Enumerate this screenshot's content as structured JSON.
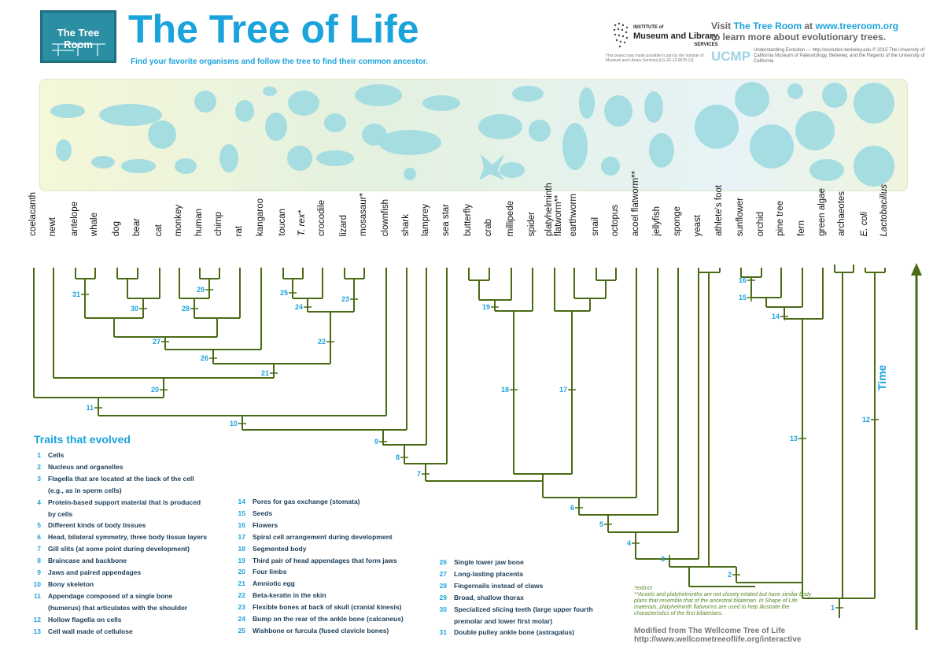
{
  "header": {
    "logo_text": "The Tree Room",
    "title": "The Tree of Life",
    "subtitle": "Find your favorite organisms and follow the tree to find their common ancestor.",
    "imls_line1": "INSTITUTE of",
    "imls_line2": "Museum and Library",
    "imls_line3": "SERVICES",
    "imls_note": "This project was made possible in part by the Institute of Museum and Library Services [LG-26-12-0578-12]",
    "visit_prefix": "Visit ",
    "visit_name": "The Tree Room",
    "visit_mid": " at ",
    "visit_url": "www.treeroom.org",
    "visit_line2": "to learn more about evolutionary trees.",
    "ucmp": "UCMP",
    "ucmp_text": "Understanding Evolution — http://evolution.berkeley.edu © 2015 The University of California Museum of Paleontology, Berkeley, and the Regents of the University of California"
  },
  "leaves": [
    {
      "name": "coelacanth",
      "italic": false
    },
    {
      "name": "newt",
      "italic": false
    },
    {
      "name": "antelope",
      "italic": false
    },
    {
      "name": "whale",
      "italic": false
    },
    {
      "name": "dog",
      "italic": false
    },
    {
      "name": "bear",
      "italic": false
    },
    {
      "name": "cat",
      "italic": false
    },
    {
      "name": "monkey",
      "italic": false
    },
    {
      "name": "human",
      "italic": false
    },
    {
      "name": "chimp",
      "italic": false
    },
    {
      "name": "rat",
      "italic": false
    },
    {
      "name": "kangaroo",
      "italic": false
    },
    {
      "name": "toucan",
      "italic": false
    },
    {
      "name": "T. rex*",
      "italic": true
    },
    {
      "name": "crocodile",
      "italic": false
    },
    {
      "name": "lizard",
      "italic": false
    },
    {
      "name": "mosasaur*",
      "italic": false
    },
    {
      "name": "clownfish",
      "italic": false
    },
    {
      "name": "shark",
      "italic": false
    },
    {
      "name": "lamprey",
      "italic": false
    },
    {
      "name": "sea star",
      "italic": false
    },
    {
      "name": "butterfly",
      "italic": false
    },
    {
      "name": "crab",
      "italic": false
    },
    {
      "name": "millipede",
      "italic": false
    },
    {
      "name": "spider",
      "italic": false
    },
    {
      "name": "platyhelminth flatworm**",
      "italic": false
    },
    {
      "name": "earthworm",
      "italic": false
    },
    {
      "name": "snail",
      "italic": false
    },
    {
      "name": "octopus",
      "italic": false
    },
    {
      "name": "acoel flatworm**",
      "italic": false
    },
    {
      "name": "jellyfish",
      "italic": false
    },
    {
      "name": "sponge",
      "italic": false
    },
    {
      "name": "yeast",
      "italic": false
    },
    {
      "name": "athlete's foot",
      "italic": false
    },
    {
      "name": "sunflower",
      "italic": false
    },
    {
      "name": "orchid",
      "italic": false
    },
    {
      "name": "pine tree",
      "italic": false
    },
    {
      "name": "fern",
      "italic": false
    },
    {
      "name": "green algae",
      "italic": false
    },
    {
      "name": "archaeotes",
      "italic": false
    },
    {
      "name": "E. coli",
      "italic": true
    },
    {
      "name": "Lactobacillus",
      "italic": true
    }
  ],
  "node_labels": [
    "1",
    "2",
    "3",
    "4",
    "5",
    "6",
    "7",
    "8",
    "9",
    "10",
    "11",
    "12",
    "13",
    "14",
    "15",
    "16",
    "17",
    "18",
    "19",
    "20",
    "21",
    "22",
    "23",
    "24",
    "25",
    "26",
    "27",
    "28",
    "29",
    "30",
    "31"
  ],
  "traits_title": "Traits that evolved",
  "traits": [
    {
      "n": "1",
      "t": "Cells"
    },
    {
      "n": "2",
      "t": "Nucleus and organelles"
    },
    {
      "n": "3",
      "t": "Flagella that are located at the back of the cell"
    },
    {
      "n": "",
      "t": "(e.g., as in sperm cells)"
    },
    {
      "n": "4",
      "t": "Protein-based support material that is produced"
    },
    {
      "n": "",
      "t": "by cells"
    },
    {
      "n": "5",
      "t": "Different kinds of body tissues"
    },
    {
      "n": "6",
      "t": "Head, bilateral symmetry, three body tissue layers"
    },
    {
      "n": "7",
      "t": "Gill slits (at some point during development)"
    },
    {
      "n": "8",
      "t": "Braincase and backbone"
    },
    {
      "n": "9",
      "t": "Jaws and paired appendages"
    },
    {
      "n": "10",
      "t": "Bony skeleton"
    },
    {
      "n": "11",
      "t": "Appendage composed of a single bone"
    },
    {
      "n": "",
      "t": "(humerus) that articulates with the shoulder"
    },
    {
      "n": "12",
      "t": "Hollow flagella on cells"
    },
    {
      "n": "13",
      "t": "Cell wall made of cellulose"
    },
    {
      "n": "14",
      "t": "Pores for gas exchange (stomata)"
    },
    {
      "n": "15",
      "t": "Seeds"
    },
    {
      "n": "16",
      "t": "Flowers"
    },
    {
      "n": "17",
      "t": "Spiral cell arrangement during development"
    },
    {
      "n": "18",
      "t": "Segmented body"
    },
    {
      "n": "19",
      "t": "Third pair of head appendages that form jaws"
    },
    {
      "n": "20",
      "t": "Four limbs"
    },
    {
      "n": "21",
      "t": "Amniotic egg"
    },
    {
      "n": "22",
      "t": "Beta-keratin in the skin"
    },
    {
      "n": "23",
      "t": "Flexible bones at back of skull (cranial kinesis)"
    },
    {
      "n": "24",
      "t": "Bump on the rear of the ankle bone (calcaneus)"
    },
    {
      "n": "25",
      "t": "Wishbone or furcula (fused clavicle bones)"
    },
    {
      "n": "26",
      "t": "Single lower jaw bone"
    },
    {
      "n": "27",
      "t": "Long-lasting placenta"
    },
    {
      "n": "28",
      "t": "Fingernails instead of claws"
    },
    {
      "n": "29",
      "t": "Broad, shallow thorax"
    },
    {
      "n": "30",
      "t": "Specialized slicing teeth (large upper fourth"
    },
    {
      "n": "",
      "t": "premolar and lower first molar)"
    },
    {
      "n": "31",
      "t": "Double pulley ankle bone (astragalus)"
    }
  ],
  "time_label": "Time",
  "notes": {
    "extinct": "*extinct",
    "acoel": "**Acoels and platyhelminths are not closely related but have similar body plans that resemble that of the ancestral bilaterian. In Shape of Life materials, platyhelminth flatworms are used to help illustrate the characteristics of the first bilaterians."
  },
  "credit": {
    "line1": "Modified from The Wellcome Tree of Life",
    "line2": "http://www.wellcometreeoflife.org/interactive"
  },
  "colors": {
    "accent": "#1ba3dc",
    "branch": "#4a6b16",
    "trait_text": "#1a3c56"
  }
}
